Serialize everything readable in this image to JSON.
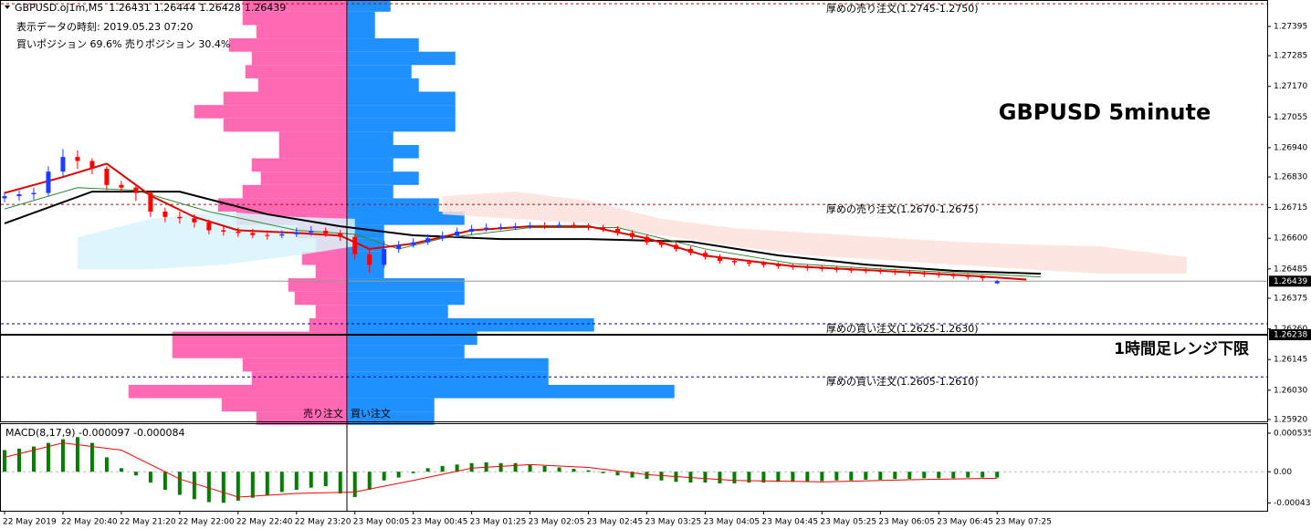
{
  "chart_data": {
    "type": "candlestick",
    "title": "GBPUSD 5minute",
    "symbol": "GBPUSD.oj1m,M5",
    "info_lines": [
      "表示データの時刻: 2019.05.23 07:20",
      "買いポジション 69.6% 売りポジション 30.4%"
    ],
    "up_color": "#1e3cff",
    "down_color": "#ff0000",
    "ohlc": [
      [
        1.2675,
        1.26775,
        1.26735,
        1.26758
      ],
      [
        1.26758,
        1.2678,
        1.2674,
        1.26765
      ],
      [
        1.26765,
        1.2679,
        1.26745,
        1.2677
      ],
      [
        1.2677,
        1.2687,
        1.2676,
        1.2685
      ],
      [
        1.2685,
        1.26935,
        1.2683,
        1.26905
      ],
      [
        1.26905,
        1.2693,
        1.2686,
        1.2689
      ],
      [
        1.2689,
        1.269,
        1.2684,
        1.26861
      ],
      [
        1.26861,
        1.2687,
        1.2678,
        1.268
      ],
      [
        1.268,
        1.26815,
        1.2677,
        1.2679
      ],
      [
        1.2679,
        1.268,
        1.2674,
        1.2677
      ],
      [
        1.2677,
        1.2678,
        1.2668,
        1.267
      ],
      [
        1.267,
        1.26715,
        1.2666,
        1.2668
      ],
      [
        1.2668,
        1.267,
        1.26655,
        1.26675
      ],
      [
        1.26675,
        1.2669,
        1.2664,
        1.2666
      ],
      [
        1.2666,
        1.2667,
        1.26615,
        1.2663
      ],
      [
        1.2663,
        1.26645,
        1.2661,
        1.26625
      ],
      [
        1.26625,
        1.2664,
        1.26605,
        1.2662
      ],
      [
        1.2662,
        1.26635,
        1.266,
        1.26612
      ],
      [
        1.26612,
        1.2663,
        1.26595,
        1.2661
      ],
      [
        1.2661,
        1.2663,
        1.266,
        1.26615
      ],
      [
        1.26615,
        1.2664,
        1.26605,
        1.26622
      ],
      [
        1.26622,
        1.26645,
        1.2661,
        1.26628
      ],
      [
        1.26628,
        1.2664,
        1.26605,
        1.26618
      ],
      [
        1.26618,
        1.2663,
        1.2659,
        1.26605
      ],
      [
        1.26605,
        1.26615,
        1.2652,
        1.2654
      ],
      [
        1.2654,
        1.2656,
        1.2647,
        1.265
      ],
      [
        1.265,
        1.2659,
        1.2649,
        1.2656
      ],
      [
        1.2656,
        1.2659,
        1.26545,
        1.26575
      ],
      [
        1.26575,
        1.266,
        1.26565,
        1.26585
      ],
      [
        1.26585,
        1.26615,
        1.26575,
        1.266
      ],
      [
        1.266,
        1.26625,
        1.2659,
        1.2661
      ],
      [
        1.2661,
        1.2664,
        1.266,
        1.26625
      ],
      [
        1.26625,
        1.2665,
        1.26615,
        1.26635
      ],
      [
        1.26635,
        1.26655,
        1.26625,
        1.2664
      ],
      [
        1.2664,
        1.26655,
        1.2663,
        1.26642
      ],
      [
        1.26642,
        1.26658,
        1.26632,
        1.26645
      ],
      [
        1.26645,
        1.2666,
        1.26635,
        1.26648
      ],
      [
        1.26648,
        1.2666,
        1.26635,
        1.26645
      ],
      [
        1.26645,
        1.26662,
        1.26638,
        1.2665
      ],
      [
        1.2665,
        1.2666,
        1.26638,
        1.26648
      ],
      [
        1.26648,
        1.26655,
        1.2663,
        1.2664
      ],
      [
        1.2664,
        1.2665,
        1.26625,
        1.26635
      ],
      [
        1.26635,
        1.26645,
        1.2661,
        1.2662
      ],
      [
        1.2662,
        1.2663,
        1.26595,
        1.26605
      ],
      [
        1.26605,
        1.26615,
        1.26575,
        1.26585
      ],
      [
        1.26585,
        1.26595,
        1.26565,
        1.26575
      ],
      [
        1.26575,
        1.26585,
        1.2655,
        1.2656
      ],
      [
        1.2656,
        1.2657,
        1.26535,
        1.26545
      ],
      [
        1.26545,
        1.26555,
        1.2652,
        1.2653
      ],
      [
        1.2653,
        1.2654,
        1.26505,
        1.26515
      ],
      [
        1.26515,
        1.26525,
        1.265,
        1.2651
      ],
      [
        1.2651,
        1.2652,
        1.26495,
        1.26505
      ],
      [
        1.26505,
        1.26515,
        1.2649,
        1.265
      ],
      [
        1.265,
        1.2651,
        1.26485,
        1.26495
      ],
      [
        1.26495,
        1.26505,
        1.26482,
        1.26492
      ],
      [
        1.26492,
        1.265,
        1.26478,
        1.26488
      ],
      [
        1.26488,
        1.26498,
        1.26475,
        1.26485
      ],
      [
        1.26485,
        1.26495,
        1.26472,
        1.26482
      ],
      [
        1.26482,
        1.26492,
        1.2647,
        1.2648
      ],
      [
        1.2648,
        1.2649,
        1.26468,
        1.26478
      ],
      [
        1.26478,
        1.26488,
        1.26466,
        1.26476
      ],
      [
        1.26476,
        1.26485,
        1.26462,
        1.26472
      ],
      [
        1.26472,
        1.2648,
        1.26458,
        1.26468
      ],
      [
        1.26468,
        1.26478,
        1.26455,
        1.26465
      ],
      [
        1.26465,
        1.26475,
        1.26452,
        1.26462
      ],
      [
        1.26462,
        1.2647,
        1.26448,
        1.26458
      ],
      [
        1.26458,
        1.26466,
        1.26445,
        1.26455
      ],
      [
        1.26455,
        1.26462,
        1.2644,
        1.2645
      ],
      [
        1.26431,
        1.26444,
        1.26428,
        1.26439
      ]
    ],
    "xlim": [
      -0.25,
      86.5
    ],
    "xticks": [
      {
        "value": 0,
        "label": "22 May 2019"
      },
      {
        "value": 4,
        "label": "22 May 20:40"
      },
      {
        "value": 8,
        "label": "22 May 21:20"
      },
      {
        "value": 12,
        "label": "22 May 22:00"
      },
      {
        "value": 16,
        "label": "22 May 22:40"
      },
      {
        "value": 20,
        "label": "22 May 23:20"
      },
      {
        "value": 24,
        "label": "23 May 00:05"
      },
      {
        "value": 28,
        "label": "23 May 00:45"
      },
      {
        "value": 32,
        "label": "23 May 01:25"
      },
      {
        "value": 36,
        "label": "23 May 02:05"
      },
      {
        "value": 40,
        "label": "23 May 02:45"
      },
      {
        "value": 44,
        "label": "23 May 03:25"
      },
      {
        "value": 48,
        "label": "23 May 04:05"
      },
      {
        "value": 52,
        "label": "23 May 04:45"
      },
      {
        "value": 56,
        "label": "23 May 05:25"
      },
      {
        "value": 60,
        "label": "23 May 06:05"
      },
      {
        "value": 64,
        "label": "23 May 06:45"
      },
      {
        "value": 68,
        "label": "23 May 07:25"
      }
    ],
    "ylim": [
      1.25913,
      1.27494
    ],
    "yticks": [
      {
        "value": 1.27395,
        "label": "1.27395"
      },
      {
        "value": 1.27285,
        "label": "1.27285"
      },
      {
        "value": 1.2717,
        "label": "1.27170"
      },
      {
        "value": 1.27055,
        "label": "1.27055"
      },
      {
        "value": 1.2694,
        "label": "1.26940"
      },
      {
        "value": 1.2683,
        "label": "1.26830"
      },
      {
        "value": 1.26715,
        "label": "1.26715"
      },
      {
        "value": 1.266,
        "label": "1.26600"
      },
      {
        "value": 1.26485,
        "label": "1.26485"
      },
      {
        "value": 1.26375,
        "label": "1.26375"
      },
      {
        "value": 1.2626,
        "label": "1.26260"
      },
      {
        "value": 1.26145,
        "label": "1.26145"
      },
      {
        "value": 1.2603,
        "label": "1.26030"
      },
      {
        "value": 1.2592,
        "label": "1.25920"
      }
    ],
    "price_markers": [
      1.26439,
      1.26238
    ],
    "lines": [
      {
        "color": "#000000",
        "x": [
          0,
          6,
          12,
          18,
          23,
          28,
          34,
          40,
          47,
          53,
          59,
          65,
          71
        ],
        "values": [
          1.26656,
          1.26775,
          1.26775,
          1.2669,
          1.26645,
          1.26611,
          1.26597,
          1.26597,
          1.26587,
          1.26536,
          1.26501,
          1.26478,
          1.26467
        ]
      },
      {
        "color": "#2e8b2e",
        "x": [
          0,
          5,
          9,
          14,
          20,
          24,
          27,
          30,
          36,
          42,
          48,
          54,
          60,
          71
        ],
        "values": [
          1.2671,
          1.2679,
          1.2678,
          1.267,
          1.2663,
          1.26615,
          1.2656,
          1.266,
          1.2664,
          1.2664,
          1.2656,
          1.26505,
          1.26485,
          1.26455
        ]
      },
      {
        "color": "#e00000",
        "x": [
          0,
          4,
          7,
          10,
          13,
          16,
          20,
          23,
          25,
          28,
          32,
          36,
          40,
          44,
          48,
          54,
          60,
          66,
          70
        ],
        "values": [
          1.2677,
          1.2683,
          1.2688,
          1.2676,
          1.2668,
          1.2663,
          1.2662,
          1.2661,
          1.2656,
          1.2658,
          1.2663,
          1.26645,
          1.26645,
          1.266,
          1.26535,
          1.26495,
          1.26478,
          1.2646,
          1.26445
        ]
      }
    ],
    "cloud": [
      {
        "color": "#d8f4fa",
        "x": [
          5,
          10,
          15,
          20,
          24
        ],
        "upper": [
          1.26604,
          1.26673,
          1.267,
          1.2668,
          1.26673
        ],
        "lower": [
          1.26484,
          1.26484,
          1.26501,
          1.26536,
          1.2657
        ]
      },
      {
        "color": "#fde0dc",
        "x": [
          30,
          35,
          40,
          45,
          50,
          55,
          60,
          65,
          70,
          75,
          81
        ],
        "upper": [
          1.26758,
          1.26775,
          1.26741,
          1.26673,
          1.26638,
          1.26621,
          1.26604,
          1.26587,
          1.26577,
          1.2657,
          1.26529
        ],
        "lower": [
          1.2669,
          1.26673,
          1.26656,
          1.26611,
          1.2657,
          1.26536,
          1.26519,
          1.26501,
          1.26484,
          1.26467,
          1.26467
        ]
      }
    ],
    "order_book": {
      "levels": [
        1.27475,
        1.27425,
        1.27375,
        1.27325,
        1.27275,
        1.27225,
        1.27175,
        1.27125,
        1.27075,
        1.27025,
        1.26975,
        1.26925,
        1.26875,
        1.26825,
        1.26775,
        1.26725,
        1.26675,
        1.26625,
        1.26575,
        1.26525,
        1.26475,
        1.26425,
        1.26375,
        1.26325,
        1.26275,
        1.26225,
        1.26175,
        1.26125,
        1.26075,
        1.26025,
        1.25975,
        1.25925
      ],
      "sell": {
        "label": "売り注文",
        "color": "#ff69b4",
        "values": [
          115,
          115,
          100,
          130,
          105,
          112,
          98,
          136,
          168,
          136,
          75,
          75,
          105,
          95,
          115,
          142,
          122,
          55,
          35,
          50,
          35,
          65,
          58,
          35,
          42,
          192,
          192,
          115,
          105,
          240,
          138,
          100
        ]
      },
      "buy": {
        "label": "買い注文",
        "color": "#1e90ff",
        "values": [
          47,
          30,
          30,
          78,
          118,
          70,
          78,
          118,
          118,
          118,
          50,
          78,
          50,
          78,
          50,
          100,
          128,
          40,
          40,
          40,
          40,
          128,
          128,
          110,
          270,
          142,
          128,
          220,
          220,
          358,
          95,
          95
        ]
      }
    },
    "levels": [
      {
        "value": 1.2748,
        "label": "厚めの売り注文(1.2745-1.2750)",
        "color": "#d00000"
      },
      {
        "value": 1.26727,
        "label": "厚めの売り注文(1.2670-1.2675)",
        "color": "#d00000"
      },
      {
        "value": 1.26279,
        "label": "厚めの買い注文(1.2625-1.2630)",
        "color": "#0000c0"
      },
      {
        "value": 1.2608,
        "label": "厚めの買い注文(1.2605-1.2610)",
        "color": "#0000c0"
      }
    ],
    "range_line": {
      "value": 1.26238,
      "label": "1時間足レンジ下限",
      "color": "#000000"
    },
    "macd": {
      "label": "MACD(8,17,9) -0.000097 -0.000084",
      "ylim": [
        -0.00054,
        0.00066
      ],
      "yticks": [
        0.000535,
        {
          "value": 0,
          "label": "0.00"
        },
        -0.000432
      ],
      "histogram": {
        "color": "#008000",
        "values": [
          0.0003,
          0.00032,
          0.00035,
          0.0004,
          0.00045,
          0.00048,
          0.0004,
          0.0002,
          5e-05,
          -5e-05,
          -0.00015,
          -0.00025,
          -0.00032,
          -0.00038,
          -0.00042,
          -0.00043,
          -0.0004,
          -0.00036,
          -0.00032,
          -0.00028,
          -0.00025,
          -0.00022,
          -0.0002,
          -0.0003,
          -0.00035,
          -0.00025,
          -0.00012,
          -8e-05,
          -2e-05,
          5e-05,
          8e-05,
          0.0001,
          0.00012,
          0.00013,
          0.00012,
          0.00012,
          0.0001,
          8e-05,
          6e-05,
          4e-05,
          2e-05,
          -2e-05,
          -5e-05,
          -8e-05,
          -0.0001,
          -0.00012,
          -0.00014,
          -0.00015,
          -0.00015,
          -0.00016,
          -0.00016,
          -0.00015,
          -0.00015,
          -0.00014,
          -0.00014,
          -0.00013,
          -0.00013,
          -0.00012,
          -0.00012,
          -0.00011,
          -0.00011,
          -0.0001,
          -0.0001,
          -9e-05,
          -9e-05,
          -9e-05,
          -8e-05,
          -8e-05,
          -8e-05
        ]
      },
      "signal": {
        "color": "#ff0000",
        "x": [
          0,
          4,
          8,
          12,
          16,
          20,
          24,
          28,
          32,
          36,
          40,
          44,
          50,
          56,
          62,
          68
        ],
        "values": [
          0.0002,
          0.0004,
          0.0003,
          -0.0001,
          -0.00035,
          -0.0003,
          -0.00028,
          -0.00012,
          5e-05,
          0.0001,
          6e-05,
          -4e-05,
          -0.00012,
          -0.00014,
          -0.00011,
          -9e-05
        ]
      }
    }
  }
}
